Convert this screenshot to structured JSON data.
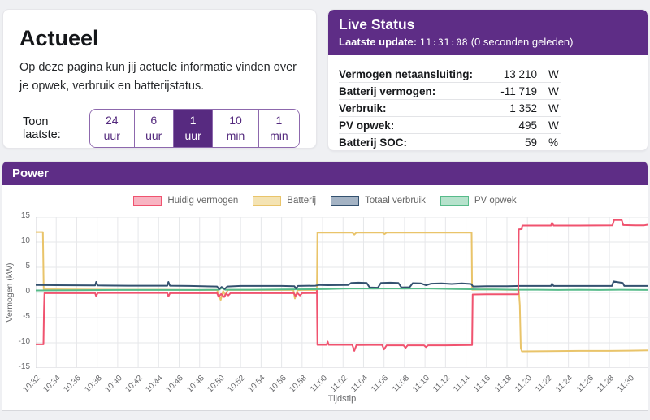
{
  "intro": {
    "title": "Actueel",
    "description": "Op deze pagina kun jij actuele informatie vinden over je opwek, verbruik en batterijstatus.",
    "range_label": "Toon laatste:",
    "range_options": [
      {
        "label": "24 uur",
        "active": false
      },
      {
        "label": "6 uur",
        "active": false
      },
      {
        "label": "1 uur",
        "active": true
      },
      {
        "label": "10 min",
        "active": false
      },
      {
        "label": "1 min",
        "active": false
      }
    ]
  },
  "live_status": {
    "title": "Live Status",
    "update_label": "Laatste update:",
    "update_time": "11:31:08",
    "update_ago": "(0 seconden geleden)",
    "rows": [
      {
        "label": "Vermogen netaansluiting:",
        "value": "13 210",
        "unit": "W"
      },
      {
        "label": "Batterij vermogen:",
        "value": "-11 719",
        "unit": "W"
      },
      {
        "label": "Verbruik:",
        "value": "1 352",
        "unit": "W"
      },
      {
        "label": "PV opwek:",
        "value": "495",
        "unit": "W"
      },
      {
        "label": "Batterij SOC:",
        "value": "59",
        "unit": "%"
      }
    ]
  },
  "power": {
    "title": "Power"
  },
  "theme": {
    "purple": "#5e2d86",
    "page_bg": "#eff0f3"
  },
  "chart_data": {
    "type": "line",
    "title": "Power",
    "xlabel": "Tijdstip",
    "ylabel": "Vermogen (kW)",
    "ylim": [
      -15,
      15
    ],
    "y_ticks": [
      15,
      10,
      5,
      0,
      -5,
      -10,
      -15
    ],
    "x_tick_labels": [
      "10:32",
      "10:34",
      "10:36",
      "10:38",
      "10:40",
      "10:42",
      "10:44",
      "10:46",
      "10:48",
      "10:50",
      "10:52",
      "10:54",
      "10:56",
      "10:58",
      "11:00",
      "11:02",
      "11:04",
      "11:06",
      "11:08",
      "11:10",
      "11:12",
      "11:14",
      "11:16",
      "11:18",
      "11:20",
      "11:22",
      "11:24",
      "11:26",
      "11:28",
      "11:30"
    ],
    "x_tick_interval_min": 2,
    "x_range_min": [
      0,
      59.8
    ],
    "grid": true,
    "legend_position": "top",
    "draw_order": [
      1,
      3,
      2,
      0
    ],
    "series": [
      {
        "name": "Huidig vermogen",
        "color": "#f0536f",
        "fill": "#f8b4c2",
        "points": [
          [
            0,
            -10.3
          ],
          [
            0.75,
            -10.3
          ],
          [
            0.8,
            -4
          ],
          [
            0.85,
            -0.15
          ],
          [
            5.8,
            -0.15
          ],
          [
            5.9,
            -0.75
          ],
          [
            6.05,
            -0.1
          ],
          [
            12.85,
            -0.1
          ],
          [
            12.95,
            -0.8
          ],
          [
            13.1,
            -0.15
          ],
          [
            17.7,
            -0.15
          ],
          [
            17.85,
            -0.85
          ],
          [
            18.1,
            -0.3
          ],
          [
            18.4,
            -0.9
          ],
          [
            18.6,
            -0.2
          ],
          [
            18.8,
            -0.6
          ],
          [
            19,
            -0.15
          ],
          [
            25.2,
            -0.15
          ],
          [
            25.35,
            -0.7
          ],
          [
            25.55,
            -0.15
          ],
          [
            25.8,
            -0.6
          ],
          [
            26,
            -0.15
          ],
          [
            27.4,
            -0.1
          ],
          [
            27.45,
            0.35
          ],
          [
            27.5,
            -10.4
          ],
          [
            28.4,
            -10.4
          ],
          [
            28.5,
            -9.75
          ],
          [
            28.6,
            -10.4
          ],
          [
            30.9,
            -10.4
          ],
          [
            31.1,
            -11.6
          ],
          [
            31.3,
            -10.45
          ],
          [
            33.8,
            -10.4
          ],
          [
            34,
            -11.3
          ],
          [
            34.25,
            -10.5
          ],
          [
            35.9,
            -10.5
          ],
          [
            36.1,
            -11
          ],
          [
            36.3,
            -10.5
          ],
          [
            37.9,
            -10.5
          ],
          [
            38.1,
            -10.85
          ],
          [
            38.3,
            -10.5
          ],
          [
            40,
            -10.5
          ],
          [
            42.6,
            -10.45
          ],
          [
            42.65,
            -0.4
          ],
          [
            44,
            -0.35
          ],
          [
            47.1,
            -0.35
          ],
          [
            47.15,
            12.55
          ],
          [
            47.45,
            12.6
          ],
          [
            47.5,
            13.3
          ],
          [
            50.3,
            13.3
          ],
          [
            50.4,
            13.85
          ],
          [
            50.55,
            13.3
          ],
          [
            53,
            13.3
          ],
          [
            56.3,
            13.35
          ],
          [
            56.45,
            14.4
          ],
          [
            57.2,
            14.4
          ],
          [
            57.35,
            13.4
          ],
          [
            58.5,
            13.35
          ],
          [
            59.4,
            13.35
          ],
          [
            59.8,
            13.5
          ]
        ]
      },
      {
        "name": "Batterij",
        "color": "#e9c46a",
        "fill": "#f4e3b3",
        "points": [
          [
            0,
            12
          ],
          [
            0.7,
            12
          ],
          [
            0.78,
            0.65
          ],
          [
            3,
            0.6
          ],
          [
            8,
            0.55
          ],
          [
            12,
            0.55
          ],
          [
            15,
            0.5
          ],
          [
            17.7,
            0.5
          ],
          [
            17.85,
            -0.4
          ],
          [
            18.05,
            -1.5
          ],
          [
            18.3,
            0.3
          ],
          [
            18.5,
            -0.6
          ],
          [
            18.75,
            0.5
          ],
          [
            25.15,
            0.5
          ],
          [
            25.3,
            -1.2
          ],
          [
            25.55,
            0.45
          ],
          [
            26,
            0.5
          ],
          [
            27.45,
            0.5
          ],
          [
            27.5,
            11.9
          ],
          [
            30.9,
            11.9
          ],
          [
            31.1,
            11.5
          ],
          [
            31.3,
            11.9
          ],
          [
            33.85,
            11.9
          ],
          [
            34.05,
            11.6
          ],
          [
            34.25,
            11.9
          ],
          [
            38,
            11.9
          ],
          [
            42.55,
            11.9
          ],
          [
            42.6,
            0.55
          ],
          [
            44,
            0.6
          ],
          [
            45.5,
            0.55
          ],
          [
            47.15,
            0.5
          ],
          [
            47.25,
            -2.5
          ],
          [
            47.35,
            -11
          ],
          [
            47.45,
            -11.7
          ],
          [
            50,
            -11.65
          ],
          [
            53,
            -11.6
          ],
          [
            56,
            -11.6
          ],
          [
            58,
            -11.55
          ],
          [
            59.8,
            -11.5
          ]
        ]
      },
      {
        "name": "Totaal verbruik",
        "color": "#33516f",
        "fill": "#a4b3c4",
        "points": [
          [
            0,
            1.5
          ],
          [
            2,
            1.45
          ],
          [
            5.8,
            1.4
          ],
          [
            5.9,
            2.1
          ],
          [
            6.05,
            1.4
          ],
          [
            9,
            1.35
          ],
          [
            12.85,
            1.35
          ],
          [
            12.95,
            2.1
          ],
          [
            13.1,
            1.35
          ],
          [
            15,
            1.3
          ],
          [
            17.7,
            1.2
          ],
          [
            17.9,
            0.65
          ],
          [
            18.15,
            1.1
          ],
          [
            18.45,
            0.7
          ],
          [
            18.7,
            1.2
          ],
          [
            20,
            1.3
          ],
          [
            24,
            1.3
          ],
          [
            25.25,
            1.25
          ],
          [
            25.4,
            0.8
          ],
          [
            25.6,
            1.3
          ],
          [
            27.3,
            1.35
          ],
          [
            27.7,
            1.5
          ],
          [
            28.5,
            1.45
          ],
          [
            30.5,
            1.5
          ],
          [
            30.8,
            1.9
          ],
          [
            31.5,
            1.95
          ],
          [
            32.3,
            1.9
          ],
          [
            32.6,
            1
          ],
          [
            33.4,
            0.95
          ],
          [
            33.7,
            1.9
          ],
          [
            34.6,
            1.95
          ],
          [
            35.4,
            1.9
          ],
          [
            35.7,
            1
          ],
          [
            36.5,
            1.05
          ],
          [
            36.8,
            1.85
          ],
          [
            37.6,
            1.8
          ],
          [
            38.1,
            1.45
          ],
          [
            38.6,
            1.75
          ],
          [
            39.6,
            1.8
          ],
          [
            40.6,
            1.7
          ],
          [
            41.6,
            1.8
          ],
          [
            42.5,
            1.7
          ],
          [
            42.7,
            1.2
          ],
          [
            44,
            1.25
          ],
          [
            46,
            1.25
          ],
          [
            47.15,
            1.3
          ],
          [
            50.3,
            1.3
          ],
          [
            50.4,
            1.75
          ],
          [
            50.55,
            1.3
          ],
          [
            53,
            1.3
          ],
          [
            56.25,
            1.3
          ],
          [
            56.4,
            2.2
          ],
          [
            57,
            2
          ],
          [
            57.3,
            1.9
          ],
          [
            57.45,
            1.3
          ],
          [
            59.8,
            1.3
          ]
        ]
      },
      {
        "name": "PV opwek",
        "color": "#57bb8a",
        "fill": "#b6e2cc",
        "points": [
          [
            0,
            0.4
          ],
          [
            4,
            0.45
          ],
          [
            8,
            0.5
          ],
          [
            12,
            0.5
          ],
          [
            16,
            0.5
          ],
          [
            17.9,
            0.55
          ],
          [
            18.15,
            0.9
          ],
          [
            18.5,
            0.55
          ],
          [
            21,
            0.55
          ],
          [
            24,
            0.6
          ],
          [
            27,
            0.65
          ],
          [
            28.5,
            0.7
          ],
          [
            30,
            0.75
          ],
          [
            31.5,
            0.8
          ],
          [
            33,
            0.75
          ],
          [
            34.5,
            0.8
          ],
          [
            36,
            0.75
          ],
          [
            37.5,
            0.8
          ],
          [
            39,
            0.75
          ],
          [
            41,
            0.7
          ],
          [
            42.6,
            0.65
          ],
          [
            43.5,
            0.6
          ],
          [
            45,
            0.6
          ],
          [
            47.15,
            0.55
          ],
          [
            49,
            0.55
          ],
          [
            51,
            0.5
          ],
          [
            53,
            0.55
          ],
          [
            55,
            0.5
          ],
          [
            57,
            0.55
          ],
          [
            59.8,
            0.5
          ]
        ]
      }
    ]
  }
}
